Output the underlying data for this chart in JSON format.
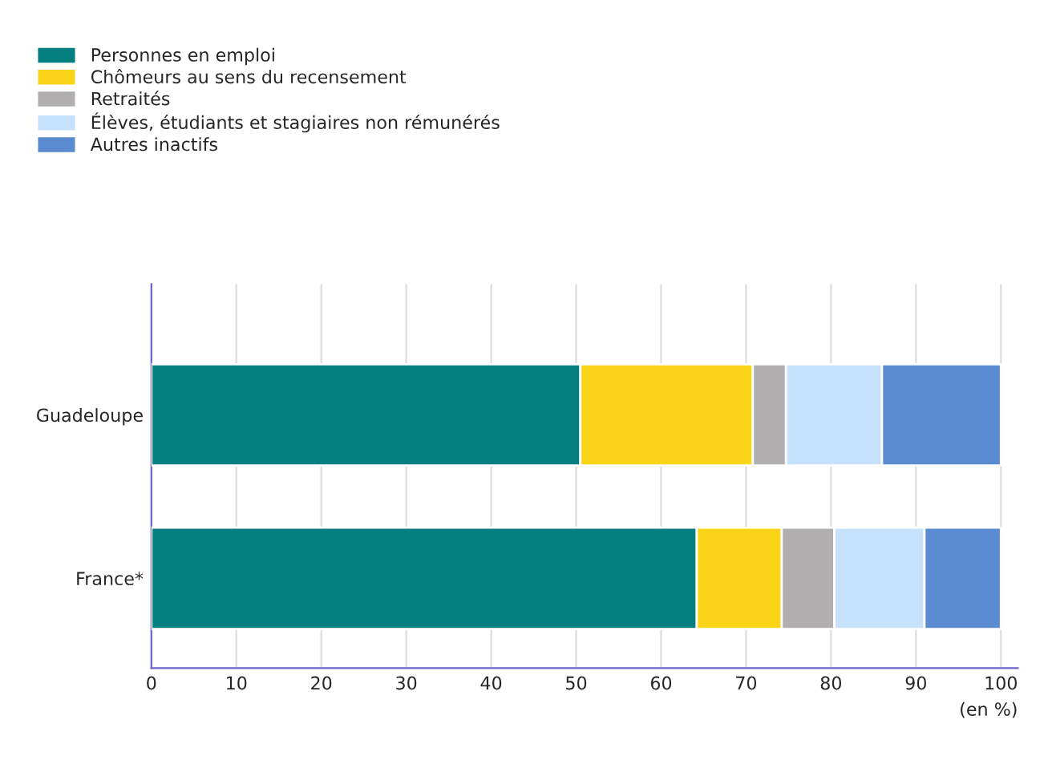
{
  "chart_data": {
    "type": "bar",
    "orientation": "horizontal",
    "stacked": true,
    "xlabel": "(en %)",
    "categories": [
      "Guadeloupe",
      "France*"
    ],
    "series": [
      {
        "name": "Personnes en emploi",
        "color": "#037f80",
        "values": [
          50.5,
          64.2
        ]
      },
      {
        "name": "Chômeurs au sens du recensement",
        "color": "#fad417",
        "values": [
          20.3,
          10.0
        ]
      },
      {
        "name": "Retraités",
        "color": "#b0aeae",
        "values": [
          3.9,
          6.2
        ]
      },
      {
        "name": "Élèves, étudiants et stagiaires non rémunérés",
        "color": "#c5e1fb",
        "values": [
          11.3,
          10.6
        ]
      },
      {
        "name": "Autres inactifs",
        "color": "#5a8bd0",
        "values": [
          14.0,
          9.0
        ]
      }
    ],
    "xlim": [
      0,
      102
    ],
    "xticks": [
      0,
      10,
      20,
      30,
      40,
      50,
      60,
      70,
      80,
      90,
      100
    ],
    "grid": "x",
    "legend": "top left"
  }
}
